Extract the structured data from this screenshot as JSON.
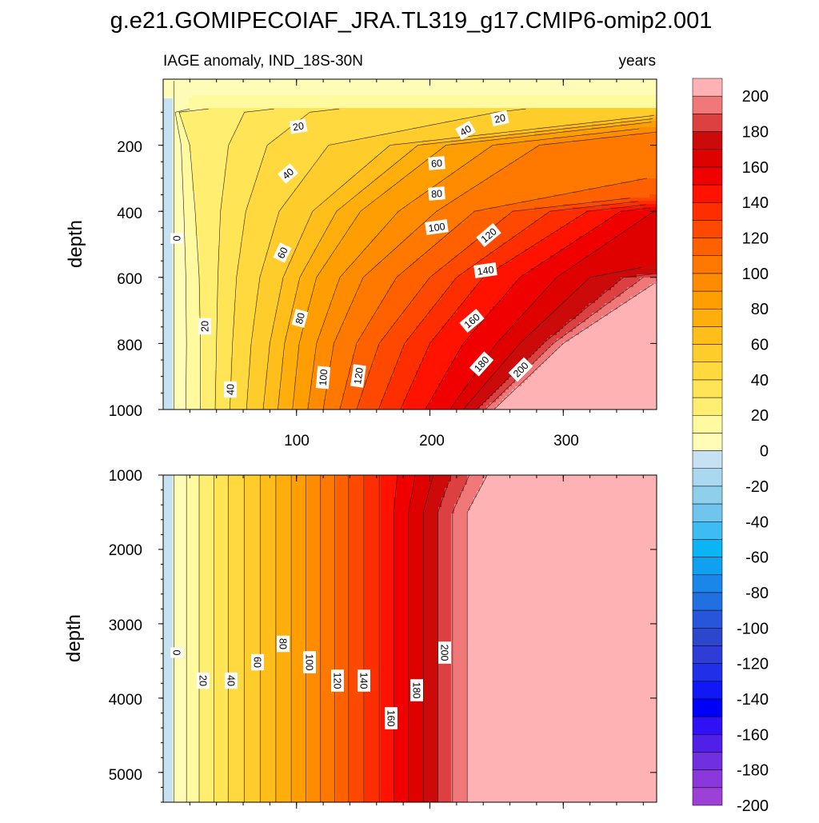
{
  "title": "g.e21.GOMIPECOIAF_JRA.TL319_g17.CMIP6-omip2.001",
  "panel_top": {
    "left_label": "IAGE anomaly, IND_18S-30N",
    "right_label": "years",
    "ylabel": "depth",
    "yticks": [
      "200",
      "400",
      "600",
      "800",
      "1000"
    ],
    "xticks": [
      "100",
      "200",
      "300"
    ]
  },
  "panel_bottom": {
    "ylabel": "depth",
    "yticks": [
      "1000",
      "2000",
      "3000",
      "4000",
      "5000"
    ]
  },
  "colorbar": {
    "ticks": [
      "200",
      "180",
      "160",
      "140",
      "120",
      "100",
      "80",
      "60",
      "40",
      "20",
      "0",
      "-20",
      "-40",
      "-60",
      "-80",
      "-100",
      "-120",
      "-140",
      "-160",
      "-180",
      "-200"
    ],
    "colors_pos": [
      "#fffcb8",
      "#fff9a0",
      "#ffee70",
      "#ffe455",
      "#ffd93d",
      "#ffcd2b",
      "#ffbe1a",
      "#ffae0b",
      "#ff9e00",
      "#ff8c00",
      "#ff7800",
      "#ff6000",
      "#ff4800",
      "#ff2e00",
      "#ff1200",
      "#f00000",
      "#df0000",
      "#cc0a0a",
      "#dd4040",
      "#f07878",
      "#ffb2b4"
    ],
    "colors_neg": [
      "#c6e2f2",
      "#aad8ef",
      "#8ecfec",
      "#6fc5ee",
      "#3cbcf2",
      "#0bb4f4",
      "#10a0f0",
      "#1a86ea",
      "#2070e2",
      "#2856da",
      "#2d46ce",
      "#2f3cd8",
      "#2030e8",
      "#1018f5",
      "#0000f8",
      "#3010f4",
      "#5020e8",
      "#7030e0",
      "#8a38dc",
      "#9c40d8"
    ]
  },
  "chart_data": [
    {
      "type": "heatmap",
      "subtype": "filled-contour",
      "title": "IAGE anomaly, IND_18S-30N",
      "units": "years",
      "xlabel": "",
      "ylabel": "depth",
      "xlim": [
        0,
        370
      ],
      "ylim": [
        1000,
        0
      ],
      "contour_interval": 10,
      "levels": [
        -200,
        200
      ],
      "contour_labels": [
        "0",
        "20",
        "20",
        "20",
        "40",
        "40",
        "40",
        "60",
        "60",
        "80",
        "80",
        "100",
        "100",
        "120",
        "120",
        "140",
        "160",
        "180",
        "200"
      ],
      "iso_contours_depth_vs_time": {
        "depth": [
          100,
          200,
          400,
          600,
          800,
          1000
        ],
        "0": [
          6,
          7,
          7,
          7,
          7,
          6
        ],
        "20": [
          12,
          20,
          24,
          27,
          28,
          28
        ],
        "40": [
          110,
          78,
          62,
          55,
          52,
          50
        ],
        "60": [
          null,
          170,
          112,
          90,
          80,
          75
        ],
        "80": [
          null,
          212,
          148,
          115,
          102,
          97
        ],
        "100": [
          null,
          282,
          205,
          150,
          128,
          120
        ],
        "120": [
          null,
          null,
          262,
          200,
          162,
          145
        ],
        "140": [
          null,
          null,
          318,
          240,
          200,
          178
        ],
        "160": [
          null,
          null,
          368,
          295,
          250,
          215
        ],
        "180": [
          null,
          null,
          null,
          345,
          285,
          235
        ],
        "200": [
          null,
          null,
          null,
          375,
          300,
          248
        ]
      }
    },
    {
      "type": "heatmap",
      "subtype": "filled-contour",
      "xlabel": "",
      "ylabel": "depth",
      "xlim": [
        0,
        370
      ],
      "ylim": [
        5400,
        1000
      ],
      "contour_labels": [
        "0",
        "20",
        "40",
        "60",
        "80",
        "100",
        "120",
        "140",
        "160",
        "180",
        "200"
      ],
      "iso_contours_time_at_depth": {
        "0": 8,
        "20": 27,
        "40": 49,
        "60": 73,
        "80": 96,
        "100": 118,
        "120": 139,
        "140": 162,
        "160": 184,
        "180": 206,
        "200": 228
      }
    }
  ]
}
